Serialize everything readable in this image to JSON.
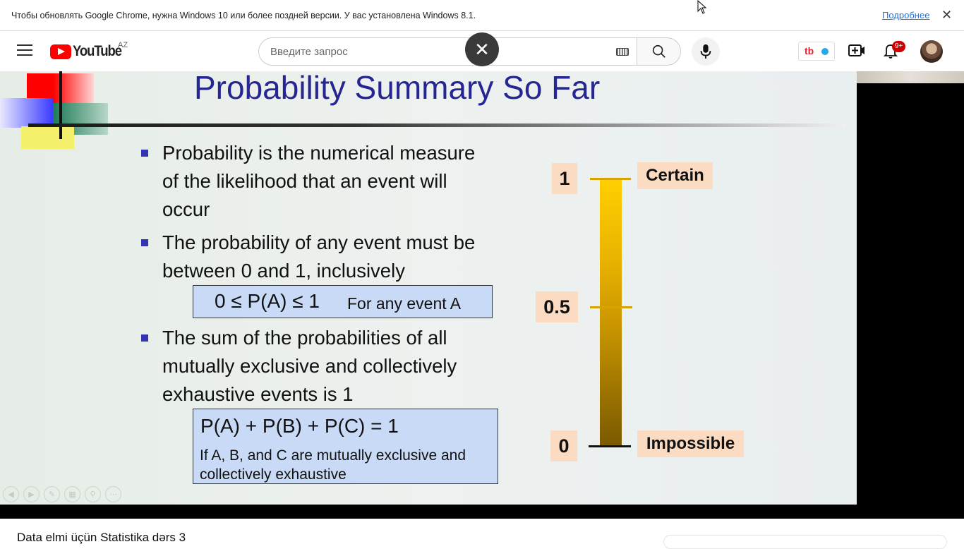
{
  "infobar": {
    "message": "Чтобы обновлять Google Chrome, нужна Windows 10 или более поздней версии. У вас установлена Windows 8.1.",
    "link_label": "Подробнее",
    "close_icon": "close-icon"
  },
  "masthead": {
    "logo_text": "YouTube",
    "country_code": "AZ",
    "search_placeholder": "Введите запрос",
    "search_value": "",
    "notifications_badge": "9+",
    "brand_color": "#ff0000"
  },
  "slide": {
    "title": "Probability Summary So Far",
    "bullets": [
      {
        "lines": [
          "Probability is the numerical measure",
          "of the likelihood that an event will",
          "occur"
        ]
      },
      {
        "lines": [
          "The probability of any event must be",
          "between 0 and 1, inclusively"
        ]
      },
      {
        "lines": [
          "The sum of the probabilities of all",
          "mutually exclusive and collectively",
          "exhaustive events is 1"
        ]
      }
    ],
    "formula_1": {
      "expression": "0 ≤ P(A) ≤ 1",
      "note": "For any event A"
    },
    "formula_2": {
      "expression": "P(A) + P(B) + P(C) = 1",
      "note": "If A, B, and C are mutually exclusive and collectively exhaustive"
    },
    "scale": {
      "top_value": "1",
      "mid_value": "0.5",
      "bottom_value": "0",
      "top_label": "Certain",
      "bottom_label": "Impossible"
    }
  },
  "video": {
    "title": "Data elmi üçün Statistika dərs 3"
  }
}
